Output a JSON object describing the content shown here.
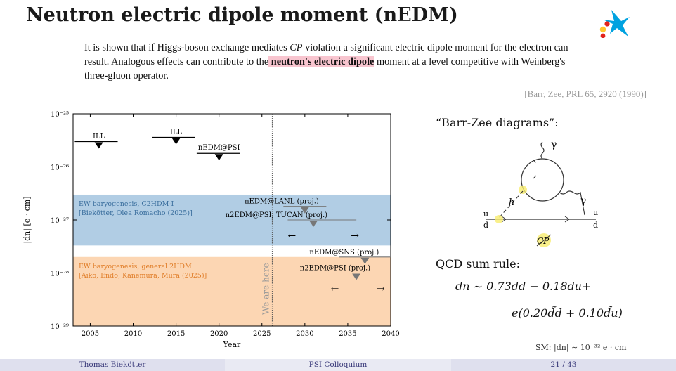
{
  "slide": {
    "title": "Neutron electric dipole moment (nEDM)",
    "logo_icon": "caixa-star-logo"
  },
  "quote": {
    "part1": "It is shown that if Higgs-boson exchange mediates ",
    "cp": "CP",
    "part2": " violation a significant electric dipole moment for the electron can result. Analogous effects can contribute to the",
    "highlight": " neutron's electric dipole",
    "part3": " moment at a level competitive with Weinberg's three-gluon operator.",
    "citation": "[Barr, Zee, PRL 65, 2920 (1990)]"
  },
  "right": {
    "diagram_heading": "“Barr-Zee diagrams”:",
    "diagram_labels": {
      "gamma_top": "γ",
      "gamma_right": "γ",
      "h": "h",
      "u_left": "u",
      "d_left": "d",
      "u_right": "u",
      "d_right": "d",
      "cp": "CP"
    },
    "qcd_label": "QCD sum rule:",
    "eq1": "dn ∼ 0.73dd − 0.18du+",
    "eq2": "e(0.20d̃d + 0.10d̃u)",
    "sm_note": "SM: |dn| ∼ 10⁻³² e · cm"
  },
  "footer": {
    "author": "Thomas Biekötter",
    "event": "PSI Colloquium",
    "page": "21 / 43"
  },
  "colors": {
    "blue_band": "#a9c8e1",
    "orange_band": "#fcd2ab",
    "highlight": "#f8c5cf",
    "logo_blue": "#00a2e0",
    "logo_red": "#e2231a",
    "logo_yellow": "#ffc72c"
  },
  "chart_data": {
    "type": "scatter",
    "x_axis": {
      "label": "Year",
      "lim": [
        2003,
        2040
      ],
      "ticks": [
        2005,
        2010,
        2015,
        2020,
        2025,
        2030,
        2035,
        2040
      ]
    },
    "y_axis": {
      "label": "|dn| [e · cm]",
      "scale": "log",
      "lim": [
        1e-29,
        1e-25
      ],
      "ticks": [
        "10⁻²⁵",
        "10⁻²⁶",
        "10⁻²⁷",
        "10⁻²⁸",
        "10⁻²⁹"
      ]
    },
    "bands": [
      {
        "label1": "EW baryogenesis, C2HDM-I",
        "label2": "[Biekötter, Olea Romacho (2025)]",
        "y_low": 3.3e-28,
        "y_high": 3e-27,
        "color": "#a9c8e1"
      },
      {
        "label1": "EW baryogenesis, general 2HDM",
        "label2": "[Aiko, Endo, Kanemura, Mura (2025)]",
        "y_low": 1e-29,
        "y_high": 2e-28,
        "color": "#fcd2ab"
      }
    ],
    "vline": {
      "x": 2026.2,
      "label": "We are here"
    },
    "measured": [
      {
        "label": "ILL",
        "x": 2006,
        "x_start": 2003.2,
        "x_end": 2008.2,
        "y": 3e-26
      },
      {
        "label": "ILL",
        "x": 2015,
        "x_start": 2012.2,
        "x_end": 2017.2,
        "y": 3.6e-26
      },
      {
        "label": "nEDM@PSI",
        "x": 2020,
        "x_start": 2017.4,
        "x_end": 2022.4,
        "y": 1.8e-26
      }
    ],
    "projected": [
      {
        "label": "nEDM@LANL (proj.)",
        "x": 2030,
        "x_start": 2027.5,
        "x_end": 2032.5,
        "y": 1.8e-27
      },
      {
        "label": "n2EDM@PSI, TUCAN (proj.)",
        "x": 2031,
        "x_start": 2028,
        "x_end": 2036,
        "y": 1e-27,
        "arrows": true
      },
      {
        "label": "nEDM@SNS (proj.)",
        "x": 2037,
        "x_start": 2034,
        "x_end": 2040,
        "y": 2e-28
      },
      {
        "label": "n2EDM@PSI (proj.)",
        "x": 2036,
        "x_start": 2033,
        "x_end": 2039,
        "y": 1e-28,
        "arrows": true
      }
    ],
    "arrow_glyphs": {
      "left": "←",
      "right": "→"
    }
  }
}
